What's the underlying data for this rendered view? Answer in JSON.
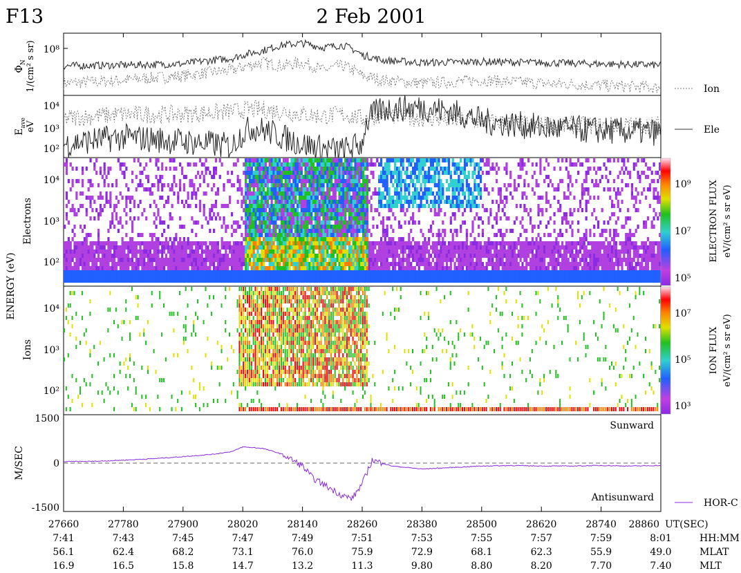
{
  "header": {
    "satellite": "F13",
    "date": "2 Feb 2001"
  },
  "panels": {
    "flux": {
      "ylabel_symbol": "Φ",
      "ylabel_sub": "N",
      "ylabel_unit": "1/(cm² s sr)",
      "yticks": [
        "10⁸"
      ],
      "legend_label": "Ion"
    },
    "energy": {
      "ylabel_symbol": "E",
      "ylabel_sub": "ave",
      "ylabel_unit": "eV",
      "yticks": [
        "10⁴",
        "10³",
        "10²"
      ],
      "legend_label": "Ele"
    },
    "spectrogram": {
      "shared_ylabel": "ENERGY (eV)",
      "electrons_label": "Electrons",
      "ions_label": "Ions",
      "electron_yticks": [
        "10⁴",
        "10³",
        "10²"
      ],
      "ion_yticks": [
        "10⁴",
        "10³",
        "10²"
      ]
    },
    "electron_colorbar": {
      "title": "ELECTRON FLUX",
      "unit": "eV/(cm² s sr eV)",
      "ticks": [
        "10⁹",
        "10⁷",
        "10⁵"
      ]
    },
    "ion_colorbar": {
      "title": "ION FLUX",
      "unit": "eV/(cm² s sr eV)",
      "ticks": [
        "10⁷",
        "10⁵",
        "10³"
      ]
    },
    "velocity": {
      "ylabel": "M/SEC",
      "yticks": [
        "1500",
        "0",
        "-1500"
      ],
      "sunward_label": "Sunward",
      "antisunward_label": "Antisunward",
      "legend_label": "HOR-C"
    }
  },
  "x_axis": {
    "unit_labels": [
      "UT(SEC)",
      "HH:MM",
      "MLAT",
      "MLT"
    ],
    "ut_sec": [
      "27660",
      "27780",
      "27900",
      "28020",
      "28140",
      "28260",
      "28380",
      "28500",
      "28620",
      "28740",
      "28860"
    ],
    "hhmm": [
      "7:41",
      "7:43",
      "7:45",
      "7:47",
      "7:49",
      "7:51",
      "7:53",
      "7:55",
      "7:57",
      "7:59",
      "8:01"
    ],
    "mlat": [
      "56.1",
      "62.4",
      "68.2",
      "73.1",
      "76.0",
      "75.9",
      "72.9",
      "68.1",
      "62.3",
      "55.9",
      "49.0"
    ],
    "mlt": [
      "16.9",
      "16.5",
      "15.8",
      "14.7",
      "13.2",
      "11.3",
      "9.80",
      "8.80",
      "8.20",
      "7.70",
      "7.40"
    ]
  },
  "chart_data": [
    {
      "type": "line",
      "panel": "number flux",
      "x": [
        27660,
        27780,
        27900,
        28000,
        28060,
        28100,
        28140,
        28180,
        28220,
        28260,
        28300,
        28380,
        28500,
        28620,
        28740,
        28860
      ],
      "series": [
        {
          "name": "Ion",
          "style": "dotted",
          "values": [
            3000000.0,
            4000000.0,
            6000000.0,
            10000000.0,
            20000000.0,
            15000000.0,
            20000000.0,
            10000000.0,
            15000000.0,
            6000000.0,
            4000000.0,
            3000000.0,
            4000000.0,
            3000000.0,
            2500000.0,
            2000000.0
          ]
        },
        {
          "name": "Ele",
          "style": "solid",
          "values": [
            15000000.0,
            16000000.0,
            18000000.0,
            30000000.0,
            60000000.0,
            100000000.0,
            120000000.0,
            80000000.0,
            100000000.0,
            40000000.0,
            25000000.0,
            20000000.0,
            22000000.0,
            20000000.0,
            18000000.0,
            16000000.0
          ]
        }
      ],
      "ylim": [
        1000000.0,
        300000000.0
      ],
      "ylog": true
    },
    {
      "type": "line",
      "panel": "average energy",
      "x": [
        27660,
        27780,
        27900,
        28000,
        28040,
        28100,
        28140,
        28180,
        28220,
        28260,
        28300,
        28380,
        28500,
        28620,
        28740,
        28860
      ],
      "series": [
        {
          "name": "Ion",
          "style": "dotted",
          "values": [
            2000.0,
            3000.0,
            3000.0,
            4000.0,
            5000.0,
            4000.0,
            3000.0,
            2500.0,
            3000.0,
            2000.0,
            3000.0,
            2000.0,
            1500.0,
            1000.0,
            1000.0,
            1000.0
          ]
        },
        {
          "name": "Ele",
          "style": "solid",
          "values": [
            150,
            300,
            200,
            120,
            800,
            300,
            150,
            100,
            80,
            150,
            5000.0,
            6000.0,
            1500.0,
            800,
            600,
            500
          ]
        }
      ],
      "ylim": [
        40,
        20000
      ],
      "ylog": true
    },
    {
      "type": "line",
      "panel": "horizontal cross-track drift",
      "x": [
        27660,
        27720,
        27780,
        27840,
        27900,
        27960,
        28000,
        28020,
        28060,
        28100,
        28140,
        28160,
        28180,
        28200,
        28220,
        28240,
        28260,
        28280,
        28320,
        28380,
        28440,
        28500,
        28560,
        28620,
        28680,
        28740,
        28800,
        28860
      ],
      "series": [
        {
          "name": "HOR-C",
          "values": [
            50,
            60,
            100,
            150,
            220,
            300,
            400,
            550,
            500,
            300,
            -100,
            -500,
            -700,
            -900,
            -1100,
            -1200,
            -700,
            100,
            -100,
            -200,
            -150,
            -100,
            -80,
            -100,
            -100,
            -80,
            -100,
            -80
          ]
        }
      ],
      "ylim": [
        -1500,
        1500
      ]
    },
    {
      "type": "heatmap",
      "panel": "electron energy spectrogram",
      "colorbar": "ELECTRON FLUX eV/(cm² s sr eV)",
      "clim": [
        100000.0,
        10000000000.0
      ]
    },
    {
      "type": "heatmap",
      "panel": "ion energy spectrogram",
      "colorbar": "ION FLUX eV/(cm² s sr eV)",
      "clim": [
        1000.0,
        100000000.0
      ]
    }
  ]
}
